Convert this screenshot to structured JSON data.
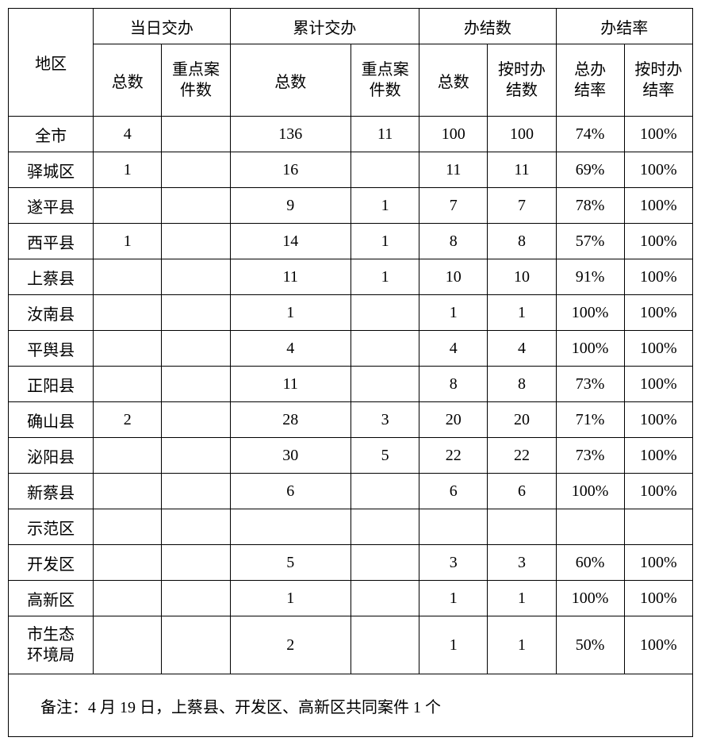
{
  "headers": {
    "region": "地区",
    "daily": "当日交办",
    "cumulative": "累计交办",
    "completed": "办结数",
    "rate": "办结率",
    "total": "总数",
    "key_cases": "重点案\n件数",
    "done_total": "总数",
    "done_ontime": "按时办\n结数",
    "rate_total": "总办\n结率",
    "rate_ontime": "按时办\n结率"
  },
  "rows": [
    {
      "region": "全市",
      "daily_total": "4",
      "daily_key": "",
      "cum_total": "136",
      "cum_key": "11",
      "done_total": "100",
      "done_ontime": "100",
      "rate_total": "74%",
      "rate_ontime": "100%"
    },
    {
      "region": "驿城区",
      "daily_total": "1",
      "daily_key": "",
      "cum_total": "16",
      "cum_key": "",
      "done_total": "11",
      "done_ontime": "11",
      "rate_total": "69%",
      "rate_ontime": "100%"
    },
    {
      "region": "遂平县",
      "daily_total": "",
      "daily_key": "",
      "cum_total": "9",
      "cum_key": "1",
      "done_total": "7",
      "done_ontime": "7",
      "rate_total": "78%",
      "rate_ontime": "100%"
    },
    {
      "region": "西平县",
      "daily_total": "1",
      "daily_key": "",
      "cum_total": "14",
      "cum_key": "1",
      "done_total": "8",
      "done_ontime": "8",
      "rate_total": "57%",
      "rate_ontime": "100%"
    },
    {
      "region": "上蔡县",
      "daily_total": "",
      "daily_key": "",
      "cum_total": "11",
      "cum_key": "1",
      "done_total": "10",
      "done_ontime": "10",
      "rate_total": "91%",
      "rate_ontime": "100%"
    },
    {
      "region": "汝南县",
      "daily_total": "",
      "daily_key": "",
      "cum_total": "1",
      "cum_key": "",
      "done_total": "1",
      "done_ontime": "1",
      "rate_total": "100%",
      "rate_ontime": "100%"
    },
    {
      "region": "平舆县",
      "daily_total": "",
      "daily_key": "",
      "cum_total": "4",
      "cum_key": "",
      "done_total": "4",
      "done_ontime": "4",
      "rate_total": "100%",
      "rate_ontime": "100%"
    },
    {
      "region": "正阳县",
      "daily_total": "",
      "daily_key": "",
      "cum_total": "11",
      "cum_key": "",
      "done_total": "8",
      "done_ontime": "8",
      "rate_total": "73%",
      "rate_ontime": "100%"
    },
    {
      "region": "确山县",
      "daily_total": "2",
      "daily_key": "",
      "cum_total": "28",
      "cum_key": "3",
      "done_total": "20",
      "done_ontime": "20",
      "rate_total": "71%",
      "rate_ontime": "100%"
    },
    {
      "region": "泌阳县",
      "daily_total": "",
      "daily_key": "",
      "cum_total": "30",
      "cum_key": "5",
      "done_total": "22",
      "done_ontime": "22",
      "rate_total": "73%",
      "rate_ontime": "100%"
    },
    {
      "region": "新蔡县",
      "daily_total": "",
      "daily_key": "",
      "cum_total": "6",
      "cum_key": "",
      "done_total": "6",
      "done_ontime": "6",
      "rate_total": "100%",
      "rate_ontime": "100%"
    },
    {
      "region": "示范区",
      "daily_total": "",
      "daily_key": "",
      "cum_total": "",
      "cum_key": "",
      "done_total": "",
      "done_ontime": "",
      "rate_total": "",
      "rate_ontime": ""
    },
    {
      "region": "开发区",
      "daily_total": "",
      "daily_key": "",
      "cum_total": "5",
      "cum_key": "",
      "done_total": "3",
      "done_ontime": "3",
      "rate_total": "60%",
      "rate_ontime": "100%"
    },
    {
      "region": "高新区",
      "daily_total": "",
      "daily_key": "",
      "cum_total": "1",
      "cum_key": "",
      "done_total": "1",
      "done_ontime": "1",
      "rate_total": "100%",
      "rate_ontime": "100%"
    },
    {
      "region": "市生态\n环境局",
      "daily_total": "",
      "daily_key": "",
      "cum_total": "2",
      "cum_key": "",
      "done_total": "1",
      "done_ontime": "1",
      "rate_total": "50%",
      "rate_ontime": "100%",
      "tall": true
    }
  ],
  "footnote": "备注：4 月 19 日，上蔡县、开发区、高新区共同案件 1 个"
}
